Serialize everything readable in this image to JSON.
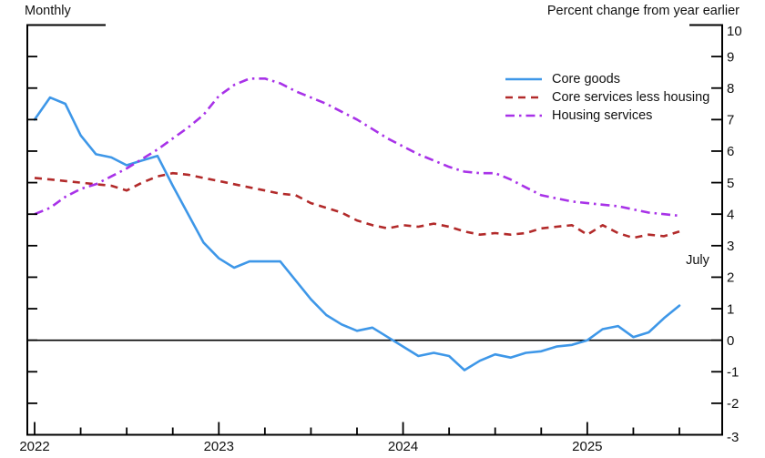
{
  "header": {
    "left_label": "Monthly",
    "right_label": "Percent change from year earlier"
  },
  "annotations": {
    "last_point_label": "July"
  },
  "colors": {
    "core_goods": "#3E97E8",
    "core_services_less_housing": "#B22A2A",
    "housing_services": "#A832E8",
    "axis": "#000000"
  },
  "chart_data": {
    "type": "line",
    "title": "",
    "frequency_label": "Monthly",
    "unit_label": "Percent change from year earlier",
    "x_start": "2022-01",
    "x_end": "2025-07",
    "n_points": 43,
    "x_tick_years": [
      "2022",
      "2023",
      "2024",
      "2025"
    ],
    "x_minor_tick_interval_months": 3,
    "ylim": [
      -3,
      10
    ],
    "y_ticks": [
      10,
      9,
      8,
      7,
      6,
      5,
      4,
      3,
      2,
      1,
      0,
      -1,
      -2,
      -3
    ],
    "zero_line": true,
    "grid": false,
    "legend_position": "top-right-inside",
    "series": [
      {
        "name": "Core goods",
        "style": "solid",
        "color_key": "core_goods",
        "values": [
          7.0,
          7.7,
          7.5,
          6.5,
          5.9,
          5.8,
          5.55,
          5.7,
          5.85,
          4.9,
          4.0,
          3.1,
          2.6,
          2.3,
          2.5,
          2.5,
          2.5,
          1.9,
          1.3,
          0.8,
          0.5,
          0.3,
          0.4,
          0.1,
          -0.2,
          -0.5,
          -0.4,
          -0.5,
          -0.95,
          -0.65,
          -0.45,
          -0.55,
          -0.4,
          -0.35,
          -0.2,
          -0.15,
          0.0,
          0.35,
          0.45,
          0.1,
          0.25,
          0.7,
          1.1
        ]
      },
      {
        "name": "Core services less housing",
        "style": "dashed",
        "color_key": "core_services_less_housing",
        "values": [
          5.15,
          5.1,
          5.05,
          5.0,
          4.95,
          4.9,
          4.75,
          5.0,
          5.2,
          5.3,
          5.25,
          5.15,
          5.05,
          4.95,
          4.85,
          4.75,
          4.65,
          4.6,
          4.35,
          4.2,
          4.05,
          3.8,
          3.65,
          3.55,
          3.65,
          3.6,
          3.7,
          3.6,
          3.45,
          3.35,
          3.4,
          3.35,
          3.4,
          3.55,
          3.6,
          3.65,
          3.35,
          3.65,
          3.4,
          3.25,
          3.35,
          3.3,
          3.45
        ]
      },
      {
        "name": "Housing services",
        "style": "dashdot",
        "color_key": "housing_services",
        "values": [
          4.0,
          4.2,
          4.55,
          4.8,
          4.95,
          5.2,
          5.45,
          5.75,
          6.05,
          6.4,
          6.75,
          7.15,
          7.75,
          8.1,
          8.3,
          8.3,
          8.15,
          7.9,
          7.7,
          7.5,
          7.25,
          7.0,
          6.7,
          6.4,
          6.15,
          5.9,
          5.7,
          5.5,
          5.35,
          5.3,
          5.3,
          5.1,
          4.85,
          4.6,
          4.5,
          4.4,
          4.35,
          4.3,
          4.25,
          4.15,
          4.05,
          4.0,
          3.95
        ]
      }
    ]
  }
}
